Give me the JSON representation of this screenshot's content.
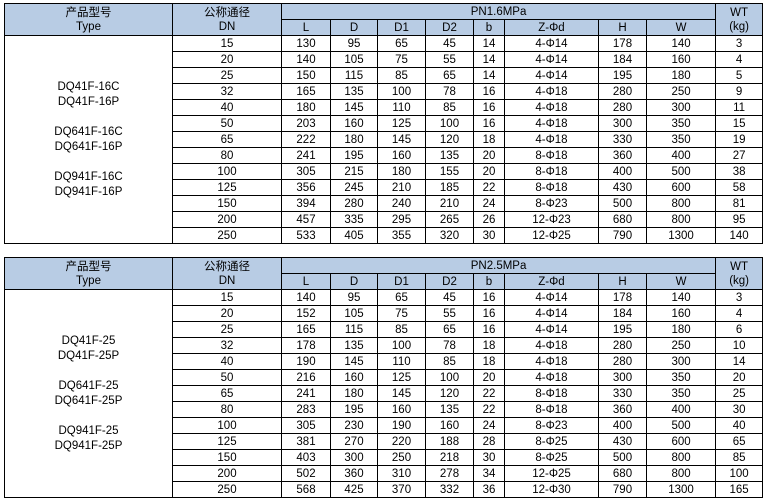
{
  "header_color": "#b8cce4",
  "tables": [
    {
      "type_label_cn": "产品型号",
      "type_label_en": "Type",
      "dn_label_cn": "公称通径",
      "dn_label_en": "DN",
      "pressure": "PN1.6MPa",
      "wt_label": "WT",
      "wt_unit": "(kg)",
      "columns": [
        "L",
        "D",
        "D1",
        "D2",
        "b",
        "Z-Φd",
        "H",
        "W"
      ],
      "models": [
        "DQ41F-16C",
        "DQ41F-16P",
        "",
        "DQ641F-16C",
        "DQ641F-16P",
        "",
        "DQ941F-16C",
        "DQ941F-16P"
      ],
      "rows": [
        [
          "15",
          "130",
          "95",
          "65",
          "45",
          "14",
          "4-Φ14",
          "178",
          "140",
          "3"
        ],
        [
          "20",
          "140",
          "105",
          "75",
          "55",
          "14",
          "4-Φ14",
          "184",
          "160",
          "4"
        ],
        [
          "25",
          "150",
          "115",
          "85",
          "65",
          "14",
          "4-Φ14",
          "195",
          "180",
          "5"
        ],
        [
          "32",
          "165",
          "135",
          "100",
          "78",
          "16",
          "4-Φ18",
          "280",
          "250",
          "9"
        ],
        [
          "40",
          "180",
          "145",
          "110",
          "85",
          "16",
          "4-Φ18",
          "280",
          "300",
          "11"
        ],
        [
          "50",
          "203",
          "160",
          "125",
          "100",
          "16",
          "4-Φ18",
          "300",
          "350",
          "15"
        ],
        [
          "65",
          "222",
          "180",
          "145",
          "120",
          "18",
          "4-Φ18",
          "330",
          "350",
          "19"
        ],
        [
          "80",
          "241",
          "195",
          "160",
          "135",
          "20",
          "8-Φ18",
          "360",
          "400",
          "27"
        ],
        [
          "100",
          "305",
          "215",
          "180",
          "155",
          "20",
          "8-Φ18",
          "400",
          "500",
          "38"
        ],
        [
          "125",
          "356",
          "245",
          "210",
          "185",
          "22",
          "8-Φ18",
          "430",
          "600",
          "58"
        ],
        [
          "150",
          "394",
          "280",
          "240",
          "210",
          "24",
          "8-Φ23",
          "500",
          "800",
          "81"
        ],
        [
          "200",
          "457",
          "335",
          "295",
          "265",
          "26",
          "12-Φ23",
          "680",
          "800",
          "95"
        ],
        [
          "250",
          "533",
          "405",
          "355",
          "320",
          "30",
          "12-Φ25",
          "790",
          "1300",
          "140"
        ]
      ]
    },
    {
      "type_label_cn": "产品型号",
      "type_label_en": "Type",
      "dn_label_cn": "公称通径",
      "dn_label_en": "DN",
      "pressure": "PN2.5MPa",
      "wt_label": "WT",
      "wt_unit": "(kg)",
      "columns": [
        "L",
        "D",
        "D1",
        "D2",
        "b",
        "Z-Φd",
        "H",
        "W"
      ],
      "models": [
        "DQ41F-25",
        "DQ41F-25P",
        "",
        "DQ641F-25",
        "DQ641F-25P",
        "",
        "DQ941F-25",
        "DQ941F-25P"
      ],
      "rows": [
        [
          "15",
          "140",
          "95",
          "65",
          "45",
          "16",
          "4-Φ14",
          "178",
          "140",
          "3"
        ],
        [
          "20",
          "152",
          "105",
          "75",
          "55",
          "16",
          "4-Φ14",
          "184",
          "160",
          "4"
        ],
        [
          "25",
          "165",
          "115",
          "85",
          "65",
          "16",
          "4-Φ14",
          "195",
          "180",
          "6"
        ],
        [
          "32",
          "178",
          "135",
          "100",
          "78",
          "18",
          "4-Φ18",
          "280",
          "250",
          "10"
        ],
        [
          "40",
          "190",
          "145",
          "110",
          "85",
          "18",
          "4-Φ18",
          "280",
          "300",
          "14"
        ],
        [
          "50",
          "216",
          "160",
          "125",
          "100",
          "20",
          "4-Φ18",
          "300",
          "350",
          "20"
        ],
        [
          "65",
          "241",
          "180",
          "145",
          "120",
          "22",
          "8-Φ18",
          "330",
          "350",
          "25"
        ],
        [
          "80",
          "283",
          "195",
          "160",
          "135",
          "22",
          "8-Φ18",
          "360",
          "400",
          "30"
        ],
        [
          "100",
          "305",
          "230",
          "190",
          "160",
          "24",
          "8-Φ23",
          "400",
          "500",
          "40"
        ],
        [
          "125",
          "381",
          "270",
          "220",
          "188",
          "28",
          "8-Φ25",
          "430",
          "600",
          "65"
        ],
        [
          "150",
          "403",
          "300",
          "250",
          "218",
          "30",
          "8-Φ25",
          "500",
          "800",
          "85"
        ],
        [
          "200",
          "502",
          "360",
          "310",
          "278",
          "34",
          "12-Φ25",
          "680",
          "800",
          "100"
        ],
        [
          "250",
          "568",
          "425",
          "370",
          "332",
          "36",
          "12-Φ30",
          "790",
          "1300",
          "165"
        ]
      ]
    }
  ]
}
